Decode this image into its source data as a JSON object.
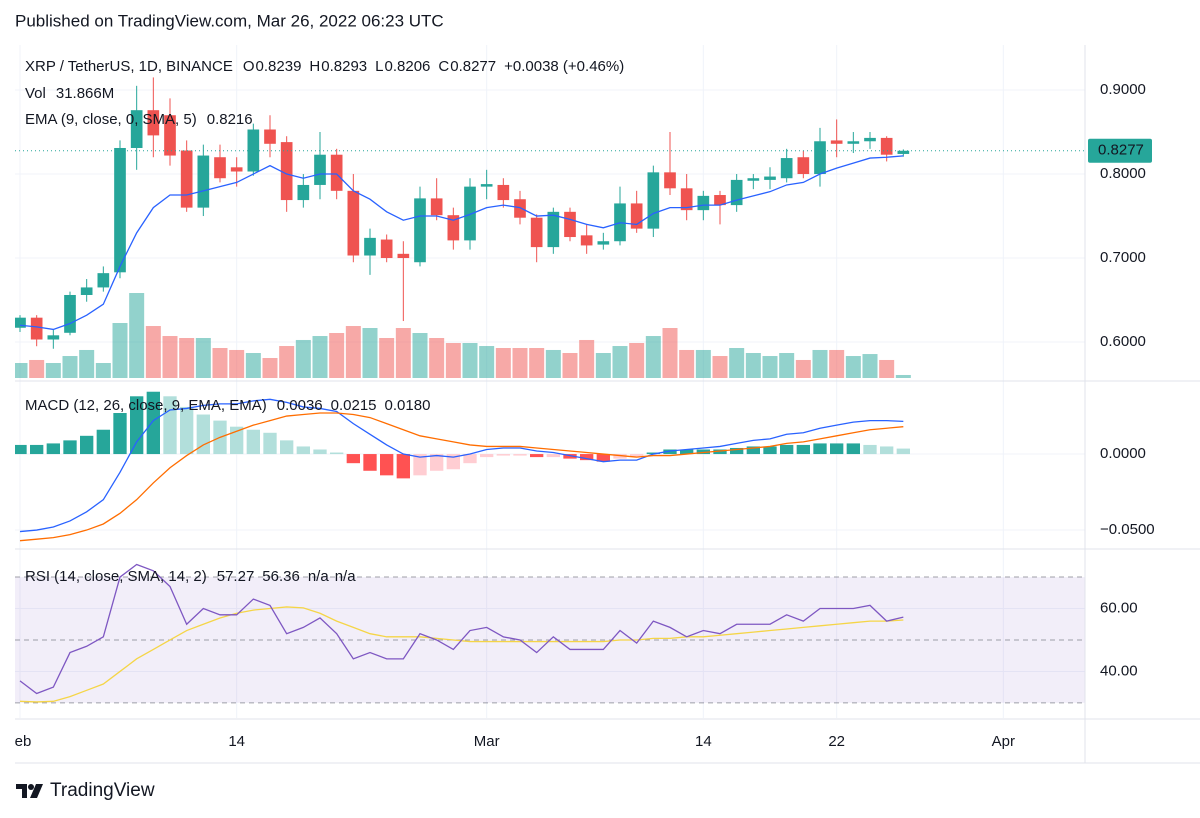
{
  "header": {
    "title": "Published on TradingView.com, Mar 26, 2022 06:23 UTC"
  },
  "footer": {
    "brand": "TradingView"
  },
  "x_axis": {
    "xlim": [
      -0.3,
      63.9
    ],
    "xticks": [
      {
        "value": 0,
        "label": "eb"
      },
      {
        "value": 13,
        "label": "14"
      },
      {
        "value": 28,
        "label": "Mar"
      },
      {
        "value": 41,
        "label": "14"
      },
      {
        "value": 49,
        "label": "22"
      },
      {
        "value": 59,
        "label": "Apr"
      }
    ],
    "grid": true
  },
  "chart_data": [
    {
      "type": "candlestick",
      "title": "XRP / TetherUS, 1D, BINANCE",
      "ohlc_prefixes": [
        "O",
        "H",
        "L",
        "C"
      ],
      "change_label": "+0.0038 (+0.46%)",
      "up_color": "#26a69a",
      "down_color": "#ef5350",
      "open": [
        0.617,
        0.629,
        0.603,
        0.611,
        0.656,
        0.665,
        0.683,
        0.831,
        0.876,
        0.87,
        0.828,
        0.76,
        0.82,
        0.808,
        0.803,
        0.853,
        0.838,
        0.769,
        0.787,
        0.823,
        0.78,
        0.703,
        0.722,
        0.705,
        0.695,
        0.771,
        0.751,
        0.721,
        0.785,
        0.787,
        0.77,
        0.748,
        0.713,
        0.755,
        0.727,
        0.716,
        0.72,
        0.765,
        0.735,
        0.802,
        0.783,
        0.757,
        0.775,
        0.763,
        0.792,
        0.793,
        0.795,
        0.82,
        0.8,
        0.84,
        0.836,
        0.839,
        0.843,
        0.8239
      ],
      "high": [
        0.632,
        0.632,
        0.615,
        0.66,
        0.675,
        0.69,
        0.84,
        0.905,
        0.915,
        0.89,
        0.84,
        0.835,
        0.835,
        0.82,
        0.86,
        0.87,
        0.845,
        0.8,
        0.85,
        0.83,
        0.8,
        0.735,
        0.728,
        0.72,
        0.785,
        0.795,
        0.76,
        0.795,
        0.805,
        0.795,
        0.78,
        0.752,
        0.76,
        0.76,
        0.74,
        0.73,
        0.785,
        0.78,
        0.81,
        0.85,
        0.8,
        0.78,
        0.78,
        0.8,
        0.8,
        0.808,
        0.83,
        0.828,
        0.855,
        0.865,
        0.85,
        0.85,
        0.845,
        0.8293
      ],
      "low": [
        0.612,
        0.595,
        0.592,
        0.608,
        0.648,
        0.66,
        0.676,
        0.805,
        0.82,
        0.81,
        0.755,
        0.75,
        0.79,
        0.785,
        0.798,
        0.82,
        0.755,
        0.76,
        0.77,
        0.77,
        0.695,
        0.68,
        0.695,
        0.625,
        0.69,
        0.745,
        0.71,
        0.71,
        0.77,
        0.76,
        0.74,
        0.695,
        0.705,
        0.72,
        0.705,
        0.71,
        0.715,
        0.73,
        0.725,
        0.775,
        0.745,
        0.745,
        0.74,
        0.755,
        0.782,
        0.782,
        0.79,
        0.795,
        0.785,
        0.82,
        0.825,
        0.83,
        0.815,
        0.8206
      ],
      "close": [
        0.629,
        0.603,
        0.608,
        0.656,
        0.665,
        0.682,
        0.831,
        0.876,
        0.846,
        0.822,
        0.76,
        0.822,
        0.795,
        0.803,
        0.853,
        0.836,
        0.769,
        0.787,
        0.823,
        0.78,
        0.703,
        0.724,
        0.7,
        0.7,
        0.771,
        0.751,
        0.721,
        0.785,
        0.788,
        0.769,
        0.748,
        0.713,
        0.755,
        0.725,
        0.715,
        0.72,
        0.765,
        0.735,
        0.802,
        0.783,
        0.757,
        0.774,
        0.763,
        0.793,
        0.795,
        0.797,
        0.819,
        0.8,
        0.839,
        0.836,
        0.839,
        0.843,
        0.823,
        0.8277
      ],
      "ylim": [
        0.5548,
        0.9536
      ],
      "yticks": [
        {
          "value": 0.9,
          "label": "0.9000"
        },
        {
          "value": 0.8,
          "label": "0.8000"
        },
        {
          "value": 0.7,
          "label": "0.7000"
        },
        {
          "value": 0.6,
          "label": "0.6000"
        }
      ],
      "grid": true,
      "volume": {
        "name": "Vol",
        "legend_label": "31.866M",
        "values": [
          159,
          191,
          159,
          233,
          297,
          159,
          583,
          901,
          551,
          445,
          424,
          424,
          318,
          297,
          265,
          212,
          339,
          403,
          445,
          477,
          551,
          530,
          424,
          530,
          477,
          424,
          371,
          371,
          339,
          318,
          318,
          318,
          297,
          265,
          403,
          265,
          339,
          371,
          445,
          530,
          297,
          297,
          233,
          318,
          265,
          233,
          265,
          191,
          297,
          297,
          233,
          254,
          191,
          31.866
        ]
      },
      "ema": {
        "name": "EMA (9, close, 0, SMA, 5)",
        "color": "#2962ff",
        "values": [
          0.62,
          0.618,
          0.615,
          0.622,
          0.632,
          0.645,
          0.69,
          0.73,
          0.76,
          0.775,
          0.775,
          0.78,
          0.785,
          0.79,
          0.8,
          0.81,
          0.8,
          0.795,
          0.8,
          0.8,
          0.78,
          0.77,
          0.755,
          0.745,
          0.75,
          0.75,
          0.745,
          0.752,
          0.76,
          0.763,
          0.76,
          0.75,
          0.751,
          0.746,
          0.74,
          0.736,
          0.742,
          0.74,
          0.753,
          0.76,
          0.76,
          0.763,
          0.763,
          0.769,
          0.774,
          0.779,
          0.787,
          0.79,
          0.8,
          0.807,
          0.813,
          0.819,
          0.82,
          0.8216
        ]
      }
    },
    {
      "type": "macd",
      "title": "MACD (12, 26, close, 9, EMA, EMA)",
      "legend_labels": [
        "0.0036",
        "0.0215",
        "0.0180"
      ],
      "histogram": {
        "colors": [
          "#26a69a",
          "#b2dfdb",
          "#ffcdd2",
          "#ff5252"
        ],
        "values": [
          0.006,
          0.006,
          0.007,
          0.009,
          0.012,
          0.016,
          0.027,
          0.038,
          0.041,
          0.038,
          0.031,
          0.026,
          0.022,
          0.018,
          0.016,
          0.014,
          0.009,
          0.005,
          0.003,
          0.001,
          -0.006,
          -0.011,
          -0.014,
          -0.016,
          -0.014,
          -0.011,
          -0.01,
          -0.006,
          -0.002,
          -0.001,
          -0.001,
          -0.002,
          -0.002,
          -0.003,
          -0.004,
          -0.005,
          -0.003,
          -0.002,
          0.001,
          0.003,
          0.003,
          0.003,
          0.003,
          0.004,
          0.005,
          0.005,
          0.006,
          0.006,
          0.007,
          0.007,
          0.007,
          0.006,
          0.005,
          0.0036
        ]
      },
      "macd": {
        "color": "#2962ff",
        "values": [
          -0.051,
          -0.05,
          -0.048,
          -0.044,
          -0.038,
          -0.03,
          -0.012,
          0.008,
          0.022,
          0.029,
          0.03,
          0.032,
          0.033,
          0.033,
          0.035,
          0.036,
          0.034,
          0.031,
          0.03,
          0.028,
          0.02,
          0.013,
          0.006,
          0,
          -0.002,
          -0.001,
          -0.002,
          0,
          0.003,
          0.004,
          0.004,
          0.002,
          0.001,
          -0.001,
          -0.003,
          -0.005,
          -0.004,
          -0.004,
          0,
          0.002,
          0.003,
          0.004,
          0.005,
          0.007,
          0.009,
          0.01,
          0.013,
          0.014,
          0.017,
          0.019,
          0.021,
          0.022,
          0.022,
          0.0215
        ]
      },
      "signal": {
        "color": "#ff6d00",
        "values": [
          -0.057,
          -0.056,
          -0.055,
          -0.053,
          -0.05,
          -0.046,
          -0.039,
          -0.03,
          -0.019,
          -0.009,
          -0.001,
          0.006,
          0.011,
          0.015,
          0.019,
          0.022,
          0.025,
          0.026,
          0.027,
          0.027,
          0.026,
          0.024,
          0.02,
          0.016,
          0.012,
          0.01,
          0.008,
          0.006,
          0.005,
          0.005,
          0.005,
          0.004,
          0.003,
          0.002,
          0.001,
          0,
          -0.001,
          -0.002,
          -0.001,
          -0.001,
          0,
          0.001,
          0.002,
          0.003,
          0.004,
          0.005,
          0.007,
          0.008,
          0.01,
          0.012,
          0.014,
          0.016,
          0.017,
          0.018
        ]
      },
      "ylim": [
        -0.0618,
        0.0474
      ],
      "yticks": [
        {
          "value": 0,
          "label": "0.0000"
        },
        {
          "value": -0.05,
          "label": "−0.0500"
        }
      ],
      "grid": true
    },
    {
      "type": "rsi",
      "title": "RSI (14, close, SMA, 14, 2)",
      "legend_tail": [
        "n/a",
        "n/a"
      ],
      "rsi": {
        "color": "#7e57c2",
        "values": [
          37,
          33,
          35,
          46,
          48,
          51,
          70,
          74,
          72,
          67,
          55,
          60,
          58,
          58,
          63,
          61,
          52,
          54,
          57,
          52,
          44,
          46,
          44,
          44,
          52,
          50,
          47,
          53,
          54,
          51,
          50,
          46,
          51,
          47,
          47,
          47,
          53,
          49,
          56,
          54,
          51,
          53,
          52,
          55,
          55,
          55,
          58,
          56,
          60,
          60,
          60,
          61,
          56,
          57.27
        ]
      },
      "sma": {
        "color": "#f5d547",
        "values": [
          30.5,
          30.3,
          30.5,
          32,
          34,
          36,
          40,
          44,
          47,
          50,
          53,
          55,
          57,
          58.5,
          59.5,
          60,
          60.5,
          60.2,
          58.5,
          56,
          54,
          52,
          51,
          51,
          51,
          50.5,
          50,
          49.5,
          49.5,
          49.5,
          49.5,
          49.5,
          49.5,
          49.5,
          49.5,
          49.5,
          50,
          50,
          50.5,
          50.5,
          51,
          51,
          51.5,
          52,
          52.5,
          53,
          53.5,
          54,
          54.5,
          55,
          55.5,
          56,
          56,
          56.36
        ]
      },
      "bands": [
        70,
        50,
        30
      ],
      "band_color": "#7e57c2",
      "ylim": [
        25.2,
        78.6
      ],
      "yticks": [
        {
          "value": 60,
          "label": "60.00"
        },
        {
          "value": 40,
          "label": "40.00"
        }
      ],
      "grid": true
    }
  ]
}
